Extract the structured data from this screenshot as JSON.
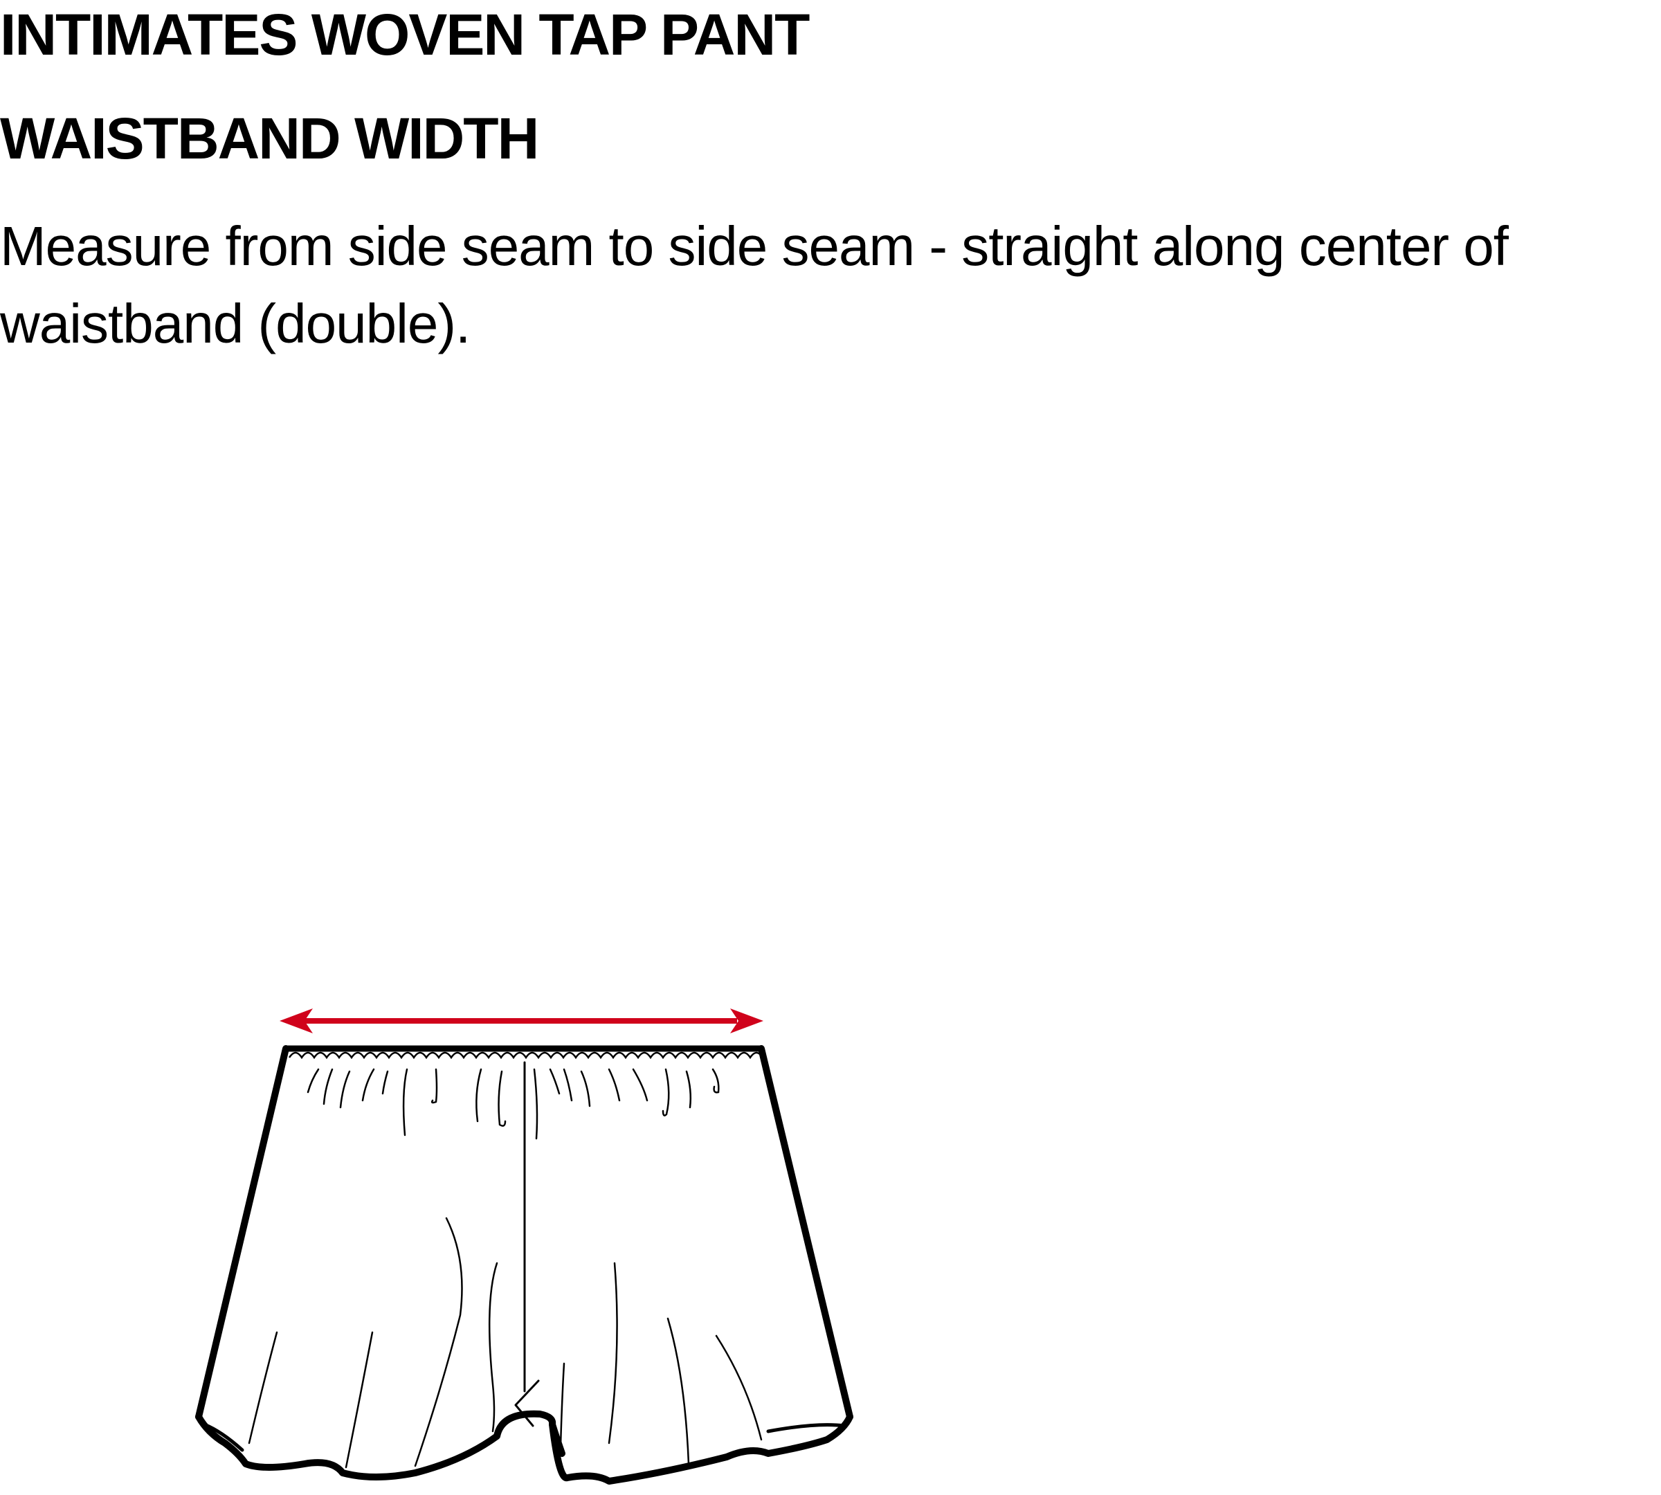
{
  "header": {
    "title": "INTIMATES WOVEN TAP PANT",
    "subtitle": "WAISTBAND WIDTH"
  },
  "instructions": {
    "text": "Measure from side seam to side seam - straight along center of waistband (double)."
  },
  "diagram": {
    "garment": "tap-pant",
    "measurement": "waistband-width",
    "arrow_color": "#d0021b",
    "line_color": "#000000"
  }
}
